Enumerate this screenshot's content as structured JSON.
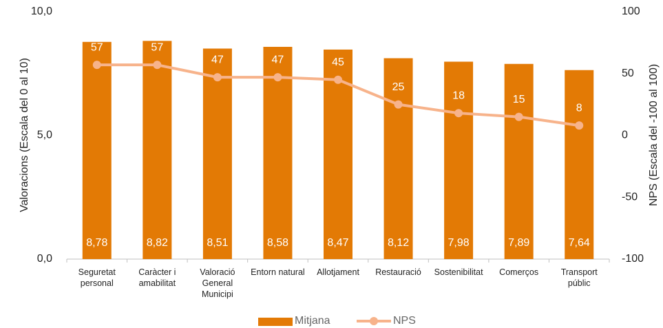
{
  "chart_data": {
    "type": "bar_line",
    "categories": [
      "Seguretat personal",
      "Caràcter i amabilitat",
      "Valoració General Municipi",
      "Entorn natural",
      "Allotjament",
      "Restauració",
      "Sostenibilitat",
      "Comerços",
      "Transport públic"
    ],
    "series": [
      {
        "name": "Mitjana",
        "color": "#e37a05",
        "values": [
          8.78,
          8.82,
          8.51,
          8.58,
          8.47,
          8.12,
          7.98,
          7.89,
          7.64
        ],
        "value_labels": [
          "8,78",
          "8,82",
          "8,51",
          "8,58",
          "8,47",
          "8,12",
          "7,98",
          "7,89",
          "7,64"
        ]
      },
      {
        "name": "NPS",
        "color": "#f7b38b",
        "axis": "y2",
        "values": [
          57,
          57,
          47,
          47,
          45,
          25,
          18,
          15,
          8
        ]
      }
    ],
    "y_label": "Valoracions (Escala  del 0 al 10)",
    "y2_label": "NPS (Escala  del -100 al 100)",
    "ylim": [
      0,
      10
    ],
    "yticks": [
      {
        "value": 0,
        "label": "0,0"
      },
      {
        "value": 5,
        "label": "5,0"
      },
      {
        "value": 10,
        "label": "10,0"
      }
    ],
    "y2lim": [
      -100,
      100
    ],
    "y2ticks": [
      -100,
      -50,
      0,
      50,
      100
    ],
    "legend": "bottom"
  }
}
